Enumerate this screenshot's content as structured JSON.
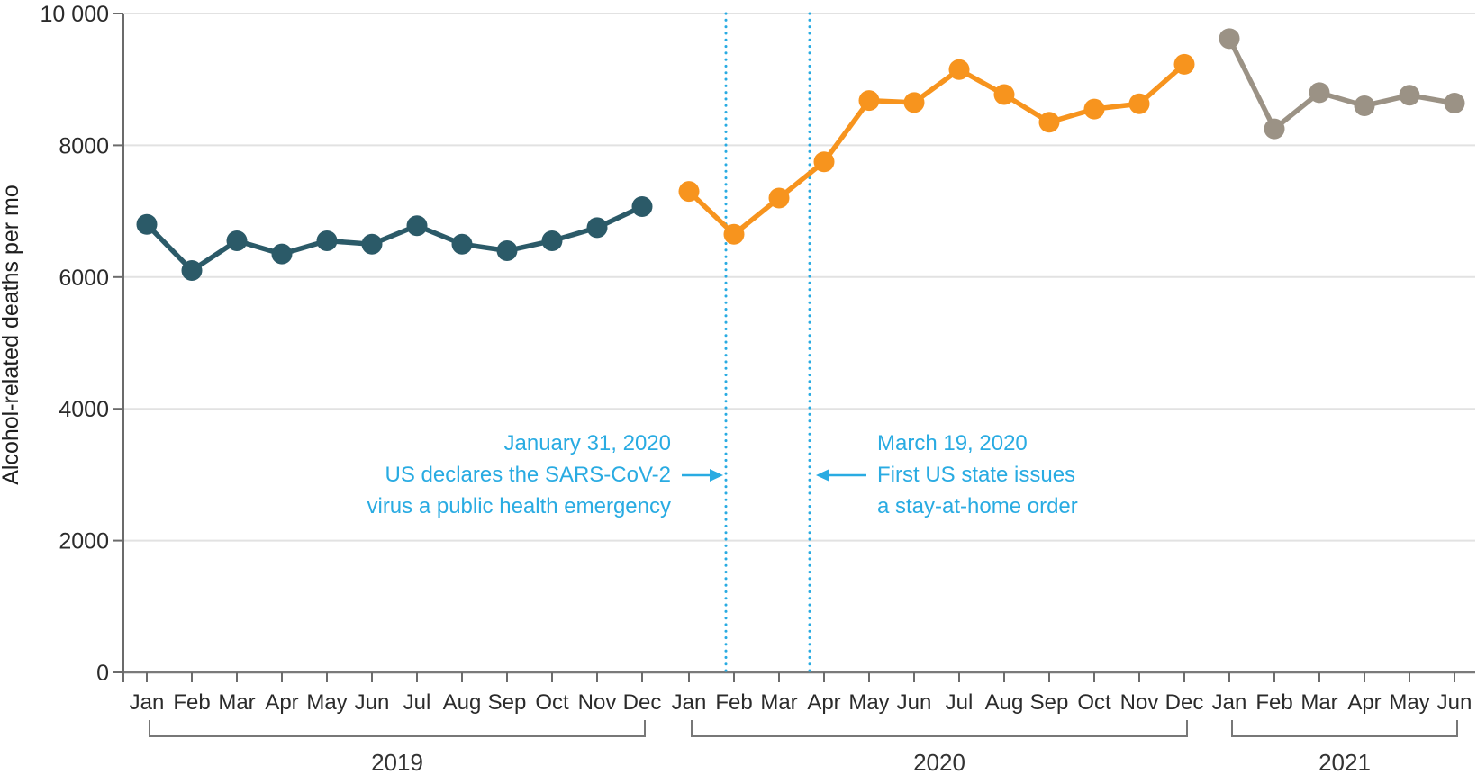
{
  "chart_data": {
    "type": "line",
    "title": "",
    "xlabel": "",
    "ylabel": "Alcohol-related deaths per mo",
    "ylim": [
      0,
      10000
    ],
    "grid": "horizontal",
    "legend": "none",
    "yticks": [
      {
        "value": 0,
        "label": "0"
      },
      {
        "value": 2000,
        "label": "2000"
      },
      {
        "value": 4000,
        "label": "4000"
      },
      {
        "value": 6000,
        "label": "6000"
      },
      {
        "value": 8000,
        "label": "8000"
      },
      {
        "value": 10000,
        "label": "10 000"
      }
    ],
    "series": [
      {
        "name": "2019",
        "color": "#2B5A68",
        "months": [
          "Jan",
          "Feb",
          "Mar",
          "Apr",
          "May",
          "Jun",
          "Jul",
          "Aug",
          "Sep",
          "Oct",
          "Nov",
          "Dec"
        ],
        "values": [
          6800,
          6100,
          6550,
          6350,
          6550,
          6500,
          6780,
          6500,
          6400,
          6550,
          6750,
          7070
        ]
      },
      {
        "name": "2020",
        "color": "#F7941E",
        "months": [
          "Jan",
          "Feb",
          "Mar",
          "Apr",
          "May",
          "Jun",
          "Jul",
          "Aug",
          "Sep",
          "Oct",
          "Nov",
          "Dec"
        ],
        "values": [
          7300,
          6650,
          7200,
          7750,
          8680,
          8650,
          9150,
          8770,
          8350,
          8550,
          8630,
          9230
        ]
      },
      {
        "name": "2021",
        "color": "#9B9285",
        "months": [
          "Jan",
          "Feb",
          "Mar",
          "Apr",
          "May",
          "Jun"
        ],
        "values": [
          9620,
          8250,
          8800,
          8600,
          8760,
          8640
        ]
      }
    ],
    "annotations": [
      {
        "id": "jan31",
        "color": "#29ABE2",
        "align": "right",
        "lines": [
          "January 31, 2020",
          "US declares the SARS-CoV-2",
          "virus a public health emergency"
        ]
      },
      {
        "id": "mar19",
        "color": "#29ABE2",
        "align": "left",
        "lines": [
          "March 19, 2020",
          "First US state issues",
          "a stay-at-home order"
        ]
      }
    ],
    "event_lines": [
      {
        "id": "jan31",
        "color": "#29ABE2"
      },
      {
        "id": "mar19",
        "color": "#29ABE2"
      }
    ],
    "year_groups": [
      "2019",
      "2020",
      "2021"
    ]
  }
}
